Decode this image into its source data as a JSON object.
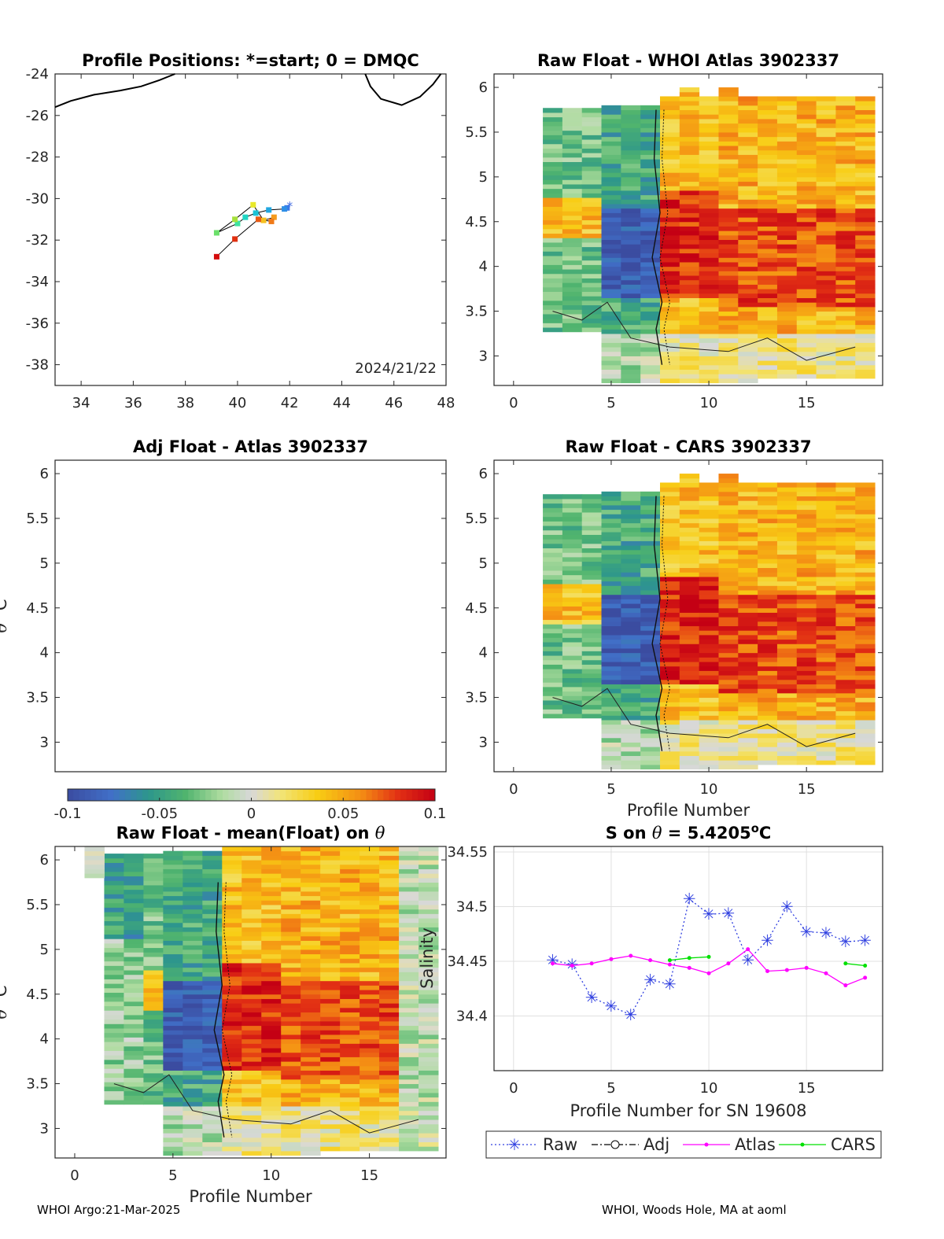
{
  "footer": {
    "left": "WHOI Argo:21-Mar-2025",
    "right": "WHOI, Woods Hole, MA at aoml"
  },
  "chart_data": [
    {
      "id": "positions",
      "type": "scatter",
      "title": "Profile Positions: *=start; 0 = DMQC",
      "xlim": [
        33,
        48
      ],
      "ylim": [
        -39,
        -24
      ],
      "xticks": [
        34,
        36,
        38,
        40,
        42,
        44,
        46,
        48
      ],
      "yticks": [
        -24,
        -26,
        -28,
        -30,
        -32,
        -34,
        -36,
        -38
      ],
      "annotation": "2024/21/22",
      "points": [
        {
          "lon": 42.0,
          "lat": -30.35,
          "color": "#4169e1",
          "marker": "star"
        },
        {
          "lon": 41.9,
          "lat": -30.45,
          "color": "#3a78e8",
          "marker": "square"
        },
        {
          "lon": 41.8,
          "lat": -30.5,
          "color": "#2e8fe6",
          "marker": "square"
        },
        {
          "lon": 41.2,
          "lat": -30.55,
          "color": "#22a7e0",
          "marker": "square"
        },
        {
          "lon": 40.7,
          "lat": -30.7,
          "color": "#1bc2d6",
          "marker": "square"
        },
        {
          "lon": 40.3,
          "lat": -30.9,
          "color": "#20d6c4",
          "marker": "square"
        },
        {
          "lon": 40.0,
          "lat": -31.2,
          "color": "#3ee2a0",
          "marker": "square"
        },
        {
          "lon": 39.2,
          "lat": -31.65,
          "color": "#6be06a",
          "marker": "square"
        },
        {
          "lon": 39.9,
          "lat": -31.0,
          "color": "#a6e03c",
          "marker": "square"
        },
        {
          "lon": 40.6,
          "lat": -30.3,
          "color": "#e8e82a",
          "marker": "square"
        },
        {
          "lon": 41.0,
          "lat": -31.05,
          "color": "#f5c020",
          "marker": "square"
        },
        {
          "lon": 41.4,
          "lat": -30.9,
          "color": "#f59b1c",
          "marker": "square"
        },
        {
          "lon": 41.3,
          "lat": -31.1,
          "color": "#f07a18",
          "marker": "square"
        },
        {
          "lon": 40.8,
          "lat": -31.0,
          "color": "#e85a14",
          "marker": "square"
        },
        {
          "lon": 39.9,
          "lat": -31.95,
          "color": "#e03010",
          "marker": "square"
        },
        {
          "lon": 39.2,
          "lat": -32.8,
          "color": "#d40c0c",
          "marker": "square"
        }
      ]
    },
    {
      "id": "raw-atlas",
      "type": "heatmap",
      "title": "Raw Float - WHOI Atlas  3902337",
      "xlim": [
        -1,
        18.9
      ],
      "ylim": [
        2.67,
        6.15
      ],
      "xticks": [
        0,
        5,
        10,
        15
      ],
      "yticks": [
        6,
        5.5,
        5,
        4.5,
        4,
        3.5,
        3
      ]
    },
    {
      "id": "adj-atlas",
      "type": "heatmap",
      "title": "Adj Float - Atlas  3902337",
      "ylabel": "θ °C",
      "xlim": [
        -1,
        18.9
      ],
      "ylim": [
        2.67,
        6.15
      ],
      "yticks": [
        6,
        5.5,
        5,
        4.5,
        4,
        3.5,
        3
      ],
      "colorbar": {
        "min": -0.1,
        "max": 0.1,
        "ticks": [
          "-0.1",
          "-0.05",
          "0",
          "0.05",
          "0.1"
        ]
      }
    },
    {
      "id": "raw-cars",
      "type": "heatmap",
      "title": "Raw Float - CARS  3902337",
      "xlabel": "Profile Number",
      "xlim": [
        -1,
        18.9
      ],
      "ylim": [
        2.67,
        6.15
      ],
      "xticks": [
        0,
        5,
        10,
        15
      ],
      "yticks": [
        6,
        5.5,
        5,
        4.5,
        4,
        3.5,
        3
      ]
    },
    {
      "id": "raw-mean",
      "type": "heatmap",
      "title": "Raw Float - mean(Float) on θ",
      "xlabel": "Profile Number",
      "ylabel": "θ °C",
      "xlim": [
        -1,
        18.9
      ],
      "ylim": [
        2.67,
        6.15
      ],
      "xticks": [
        0,
        5,
        10,
        15
      ],
      "yticks": [
        6,
        5.5,
        5,
        4.5,
        4,
        3.5,
        3
      ]
    },
    {
      "id": "salinity",
      "type": "line",
      "title": "S on θ = 5.4205°C",
      "xlabel": "Profile Number for SN 19608",
      "ylabel": "Salinity",
      "xlim": [
        -1,
        18.9
      ],
      "ylim": [
        34.35,
        34.555
      ],
      "xticks": [
        0,
        5,
        10,
        15
      ],
      "yticks": [
        34.55,
        34.5,
        34.45,
        34.4
      ],
      "grid": true,
      "legend": "bottom",
      "series": [
        {
          "name": "Raw",
          "color": "#3040e0",
          "style": "dotted",
          "marker": "star",
          "x": [
            2,
            3,
            4,
            5,
            6,
            7,
            8,
            9,
            10,
            11,
            12,
            13,
            14,
            15,
            16,
            17,
            18
          ],
          "y": [
            34.451,
            34.447,
            34.417,
            34.409,
            34.401,
            34.433,
            34.429,
            34.507,
            34.493,
            34.494,
            34.451,
            34.469,
            34.5,
            34.477,
            34.476,
            34.468,
            34.469
          ]
        },
        {
          "name": "Adj",
          "color": "#000000",
          "style": "dashdot",
          "marker": "circle",
          "x": [],
          "y": []
        },
        {
          "name": "Atlas",
          "color": "#ff00ff",
          "style": "solid",
          "marker": "dot",
          "x": [
            2,
            3,
            4,
            5,
            6,
            7,
            8,
            9,
            10,
            11,
            12,
            13,
            14,
            15,
            16,
            17,
            18
          ],
          "y": [
            34.448,
            34.446,
            34.448,
            34.452,
            34.455,
            34.451,
            34.447,
            34.444,
            34.439,
            34.448,
            34.461,
            34.441,
            34.442,
            34.444,
            34.439,
            34.428,
            34.435
          ]
        },
        {
          "name": "CARS",
          "color": "#00e000",
          "style": "solid",
          "marker": "dot",
          "x": [
            8,
            9,
            10,
            null,
            17,
            18
          ],
          "y": [
            34.451,
            34.453,
            34.454,
            null,
            34.448,
            34.446
          ]
        }
      ]
    }
  ]
}
